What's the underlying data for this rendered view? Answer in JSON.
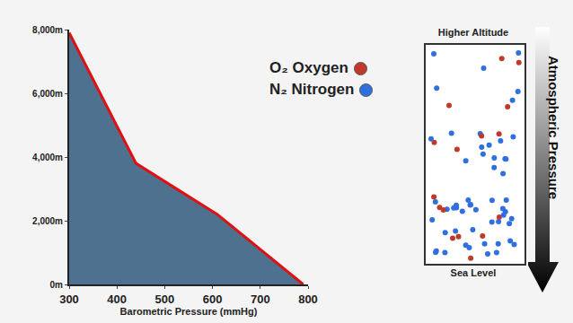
{
  "chart_data": {
    "type": "line",
    "x_label": "Barometric Pressure (mmHg)",
    "series": [
      {
        "name": "Barometric pressure",
        "color": "#e01010",
        "x": [
          300,
          440,
          610,
          790
        ],
        "values": [
          7900,
          3800,
          2200,
          0
        ]
      }
    ],
    "xlim": [
      300,
      800
    ],
    "xticks": [
      300,
      400,
      500,
      600,
      700,
      800
    ],
    "ylim": [
      0,
      8000
    ],
    "yticks": [
      {
        "value": 0,
        "label": "0m"
      },
      {
        "value": 2000,
        "label": "2,000m"
      },
      {
        "value": 4000,
        "label": "4,000m"
      },
      {
        "value": 6000,
        "label": "6,000m"
      },
      {
        "value": 8000,
        "label": "8,000m"
      }
    ],
    "grid": false
  },
  "legend": [
    {
      "formula": "O₂",
      "label": "Oxygen",
      "color": "#c0392b"
    },
    {
      "formula": "N₂",
      "label": "Nitrogen",
      "color": "#2f6fe0"
    }
  ],
  "diagram": {
    "top_label": "Higher Altitude",
    "bottom_label": "Sea Level",
    "arrow_label": "Atmospheric Pressure"
  }
}
